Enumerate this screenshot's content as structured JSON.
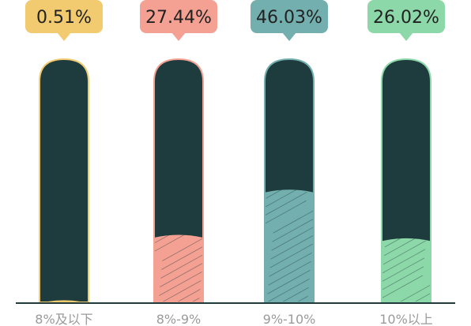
{
  "chart_data": {
    "type": "bar",
    "categories": [
      "8%及以下",
      "8%-9%",
      "9%-10%",
      "10%以上"
    ],
    "values": [
      0.51,
      27.44,
      46.03,
      26.02
    ],
    "value_labels": [
      "0.51%",
      "27.44%",
      "46.03%",
      "26.02%"
    ],
    "ylim": [
      0,
      100
    ],
    "grid": false,
    "colors": [
      "#f2cb70",
      "#f4a093",
      "#73afae",
      "#8dd8a9"
    ],
    "bar_background_color": "#1e3b3d",
    "axis_color": "#1e3b3d"
  }
}
